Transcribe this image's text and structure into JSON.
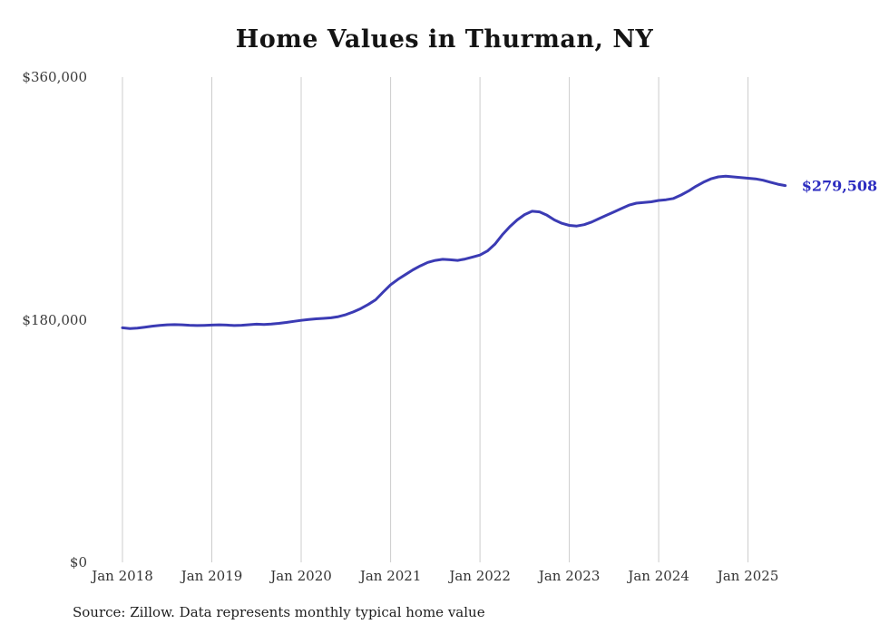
{
  "page": {
    "background": "#ffffff"
  },
  "chart_data": {
    "type": "line",
    "title": "Home Values in Thurman, NY",
    "source_note": "Source: Zillow. Data represents monthly typical home value",
    "end_label": "$279,508",
    "end_value": 279508,
    "line_color": "#3b3bb4",
    "annotation_color": "#2d2dc0",
    "grid_color": "#cccccc",
    "grid": "vertical",
    "legend": "none",
    "ylim": [
      0,
      360000
    ],
    "yticks": [
      {
        "value": 0,
        "label": "$0"
      },
      {
        "value": 180000,
        "label": "$180,000"
      },
      {
        "value": 360000,
        "label": "$360,000"
      }
    ],
    "xticks": [
      {
        "label": "Jan 2018",
        "month_index": 0
      },
      {
        "label": "Jan 2019",
        "month_index": 12
      },
      {
        "label": "Jan 2020",
        "month_index": 24
      },
      {
        "label": "Jan 2021",
        "month_index": 36
      },
      {
        "label": "Jan 2022",
        "month_index": 48
      },
      {
        "label": "Jan 2023",
        "month_index": 60
      },
      {
        "label": "Jan 2024",
        "month_index": 72
      },
      {
        "label": "Jan 2025",
        "month_index": 84
      }
    ],
    "series": [
      {
        "name": "Typical home value",
        "start": "Jan 2018",
        "frequency": "monthly",
        "values": [
          174000,
          173500,
          173800,
          174500,
          175200,
          175800,
          176200,
          176400,
          176200,
          175900,
          175700,
          175800,
          176000,
          176200,
          176000,
          175700,
          175900,
          176300,
          176700,
          176500,
          176800,
          177300,
          178000,
          178800,
          179500,
          180200,
          180700,
          181000,
          181400,
          182300,
          183800,
          185800,
          188300,
          191300,
          194800,
          200500,
          206000,
          210000,
          213500,
          217000,
          220000,
          222500,
          224000,
          224800,
          224500,
          224000,
          225000,
          226500,
          228000,
          231000,
          236000,
          243000,
          249000,
          254000,
          258000,
          260500,
          260000,
          257500,
          254000,
          251500,
          250000,
          249500,
          250500,
          252500,
          255000,
          257500,
          260000,
          262500,
          265000,
          266500,
          267000,
          267500,
          268500,
          269000,
          270000,
          272500,
          275500,
          279000,
          282000,
          284500,
          286000,
          286500,
          286000,
          285500,
          285000,
          284500,
          283500,
          282000,
          280500,
          279508
        ]
      }
    ]
  }
}
